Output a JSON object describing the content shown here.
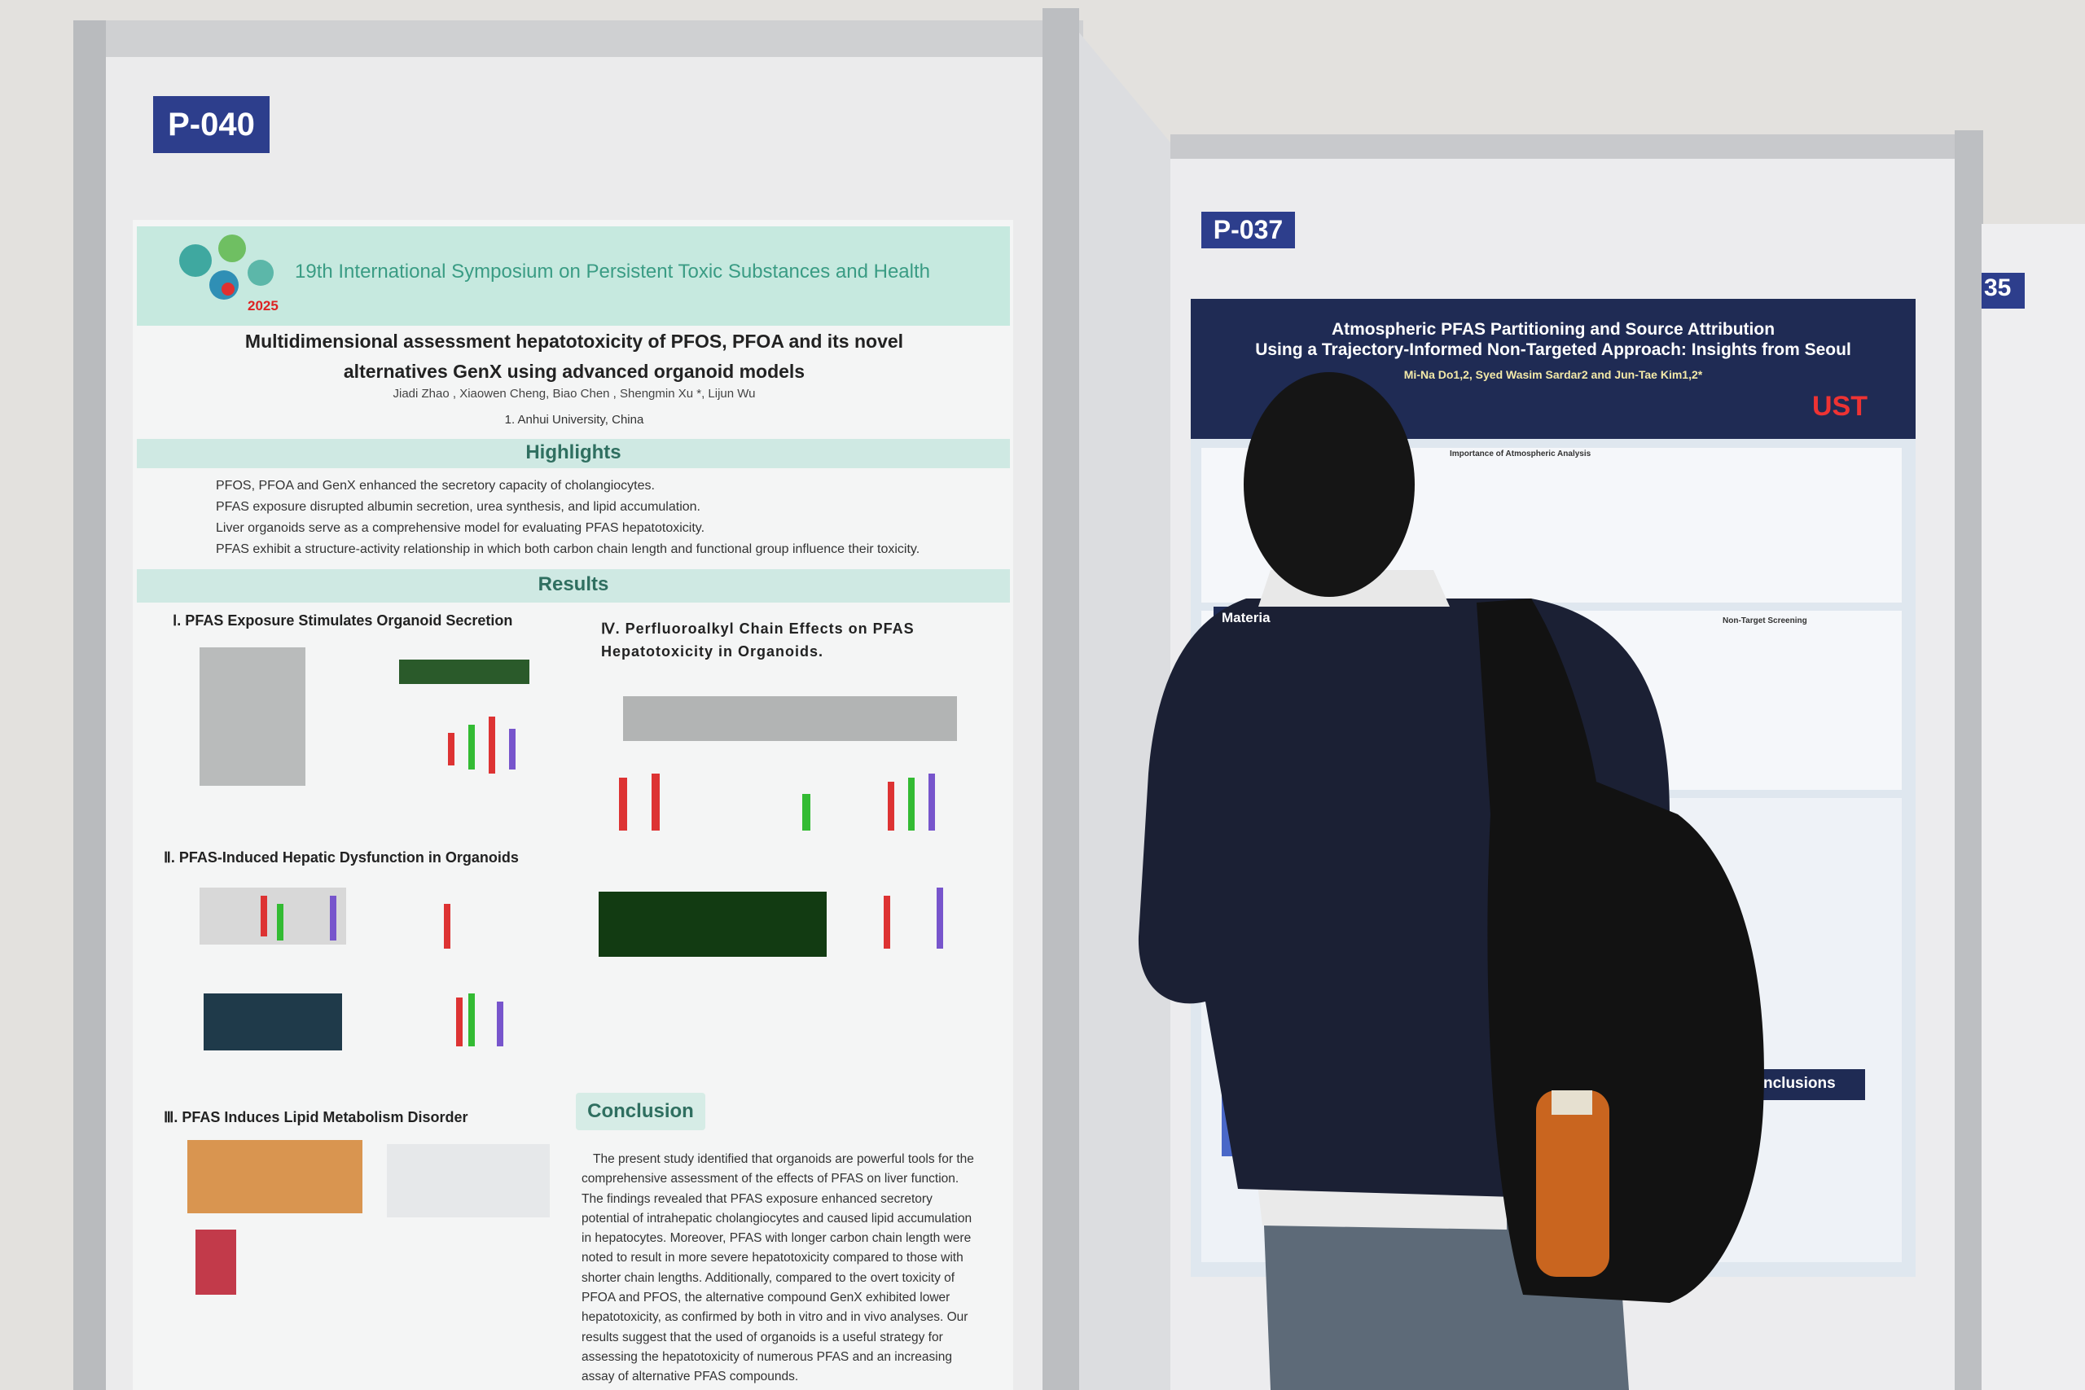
{
  "left_poster": {
    "board_label": "P-040",
    "symposium": "19th International Symposium on Persistent Toxic Substances and Health",
    "year": "2025",
    "title_line_1": "Multidimensional assessment hepatotoxicity of PFOS, PFOA and its novel",
    "title_line_2": "alternatives GenX using advanced organoid models",
    "authors": "Jiadi Zhao , Xiaowen Cheng, Biao Chen , Shengmin Xu *, Lijun Wu",
    "affiliation": "1. Anhui University,  China",
    "highlights_heading": "Highlights",
    "highlights": [
      "PFOS, PFOA and GenX enhanced the secretory capacity of cholangiocytes.",
      "PFAS exposure disrupted albumin secretion, urea synthesis, and lipid accumulation.",
      "Liver organoids serve as a comprehensive model for evaluating PFAS hepatotoxicity.",
      "PFAS exhibit a structure-activity relationship in which both carbon chain length and functional group influence their toxicity."
    ],
    "results_heading": "Results",
    "sections": [
      "Ⅰ. PFAS Exposure Stimulates Organoid Secretion",
      "Ⅱ. PFAS-Induced Hepatic Dysfunction in Organoids",
      "Ⅲ. PFAS Induces Lipid Metabolism Disorder",
      "Ⅳ. Perfluoroalkyl Chain Effects on PFAS Hepatotoxicity in Organoids."
    ],
    "conclusion_heading": "Conclusion",
    "conclusion": "The present study identified that organoids are powerful tools for the comprehensive assessment of the effects of PFAS on liver function. The findings revealed that PFAS exposure enhanced secretory potential of intrahepatic cholangiocytes and caused lipid accumulation in hepatocytes. Moreover, PFAS with longer carbon chain length were noted to result in more severe hepatotoxicity compared to those with shorter chain lengths. Additionally, compared to the overt toxicity of PFOA and PFOS, the alternative compound GenX exhibited lower hepatotoxicity, as confirmed by both in vitro and in vivo analyses. Our results suggest that the used of organoids is a useful strategy for assessing the hepatotoxicity of numerous PFAS and an increasing assay of alternative PFAS compounds."
  },
  "right_poster": {
    "board_label": "P-037",
    "title_line_1": "Atmospheric PFAS Partitioning and Source Attribution",
    "title_line_2": "Using a Trajectory-Informed Non-Targeted Approach: Insights from Seoul",
    "authors": "Mi-Na Do1,2, Syed Wasim Sardar2 and Jun-Tae Kim1,2*",
    "logo": "UST",
    "section_1": "Importance of Atmospheric Analysis",
    "section_2": "Non-Target Screening",
    "section_3": "Materia",
    "section_4": "nclusions"
  },
  "far_board_label": "35"
}
